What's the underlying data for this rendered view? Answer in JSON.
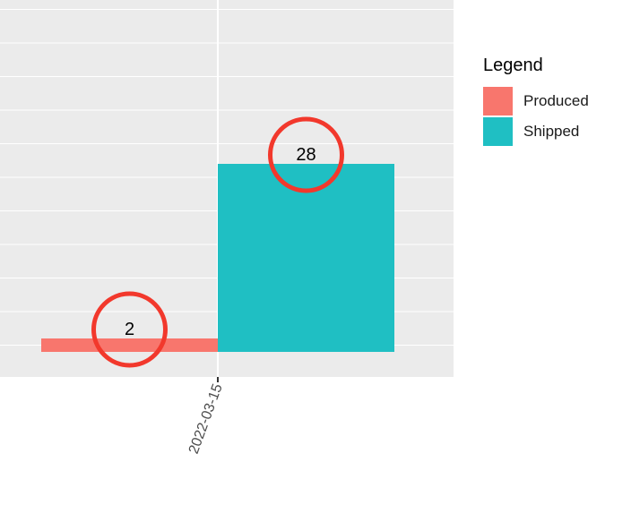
{
  "chart_data": {
    "type": "bar",
    "x_type": "date",
    "categories": [
      "2022-03-15"
    ],
    "series": [
      {
        "name": "Produced",
        "values": [
          2
        ],
        "color": "#F8766D"
      },
      {
        "name": "Shipped",
        "values": [
          28
        ],
        "color": "#1FBFC3"
      }
    ],
    "bar_position": "dodge",
    "legend": {
      "title": "Legend",
      "position": "right"
    },
    "annotations": [
      {
        "series": "Produced",
        "category": "2022-03-15",
        "text": "2",
        "style": "red-circle"
      },
      {
        "series": "Shipped",
        "category": "2022-03-15",
        "text": "28",
        "style": "red-circle"
      }
    ],
    "grid": true,
    "ylim": [
      -4,
      52
    ],
    "y_tick_labels": "hidden",
    "x_tick_label_rotation": -70,
    "panel_background": "#EBEBEB",
    "annotation_color": "#F2382C"
  }
}
